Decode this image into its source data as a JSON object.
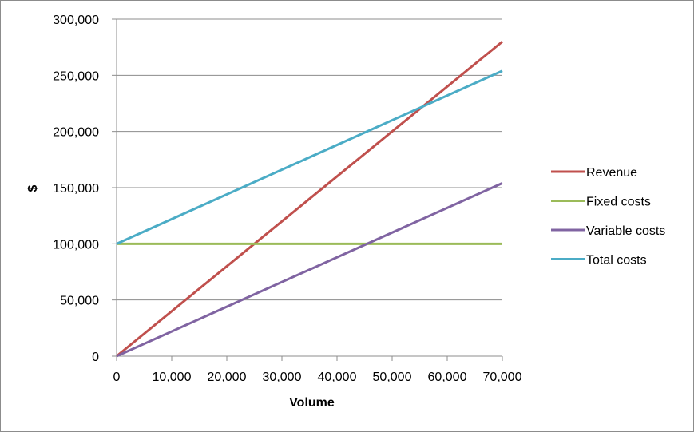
{
  "chart_data": {
    "type": "line",
    "title": "",
    "xlabel": "Volume",
    "ylabel": "$",
    "xlim": [
      0,
      70000
    ],
    "ylim": [
      0,
      300000
    ],
    "x_ticks": [
      0,
      10000,
      20000,
      30000,
      40000,
      50000,
      60000,
      70000
    ],
    "y_ticks": [
      0,
      50000,
      100000,
      150000,
      200000,
      250000,
      300000
    ],
    "x_tick_labels": [
      "0",
      "10,000",
      "20,000",
      "30,000",
      "40,000",
      "50,000",
      "60,000",
      "70,000"
    ],
    "y_tick_labels": [
      "0",
      "50,000",
      "100,000",
      "150,000",
      "200,000",
      "250,000",
      "300,000"
    ],
    "grid": "horizontal",
    "legend_position": "right",
    "series": [
      {
        "name": "Revenue",
        "color": "#c0504d",
        "x": [
          0,
          70000
        ],
        "y": [
          0,
          280000
        ]
      },
      {
        "name": "Fixed costs",
        "color": "#9bbb59",
        "x": [
          0,
          70000
        ],
        "y": [
          100000,
          100000
        ]
      },
      {
        "name": "Variable costs",
        "color": "#8064a2",
        "x": [
          0,
          70000
        ],
        "y": [
          0,
          154000
        ]
      },
      {
        "name": "Total costs",
        "color": "#4bacc6",
        "x": [
          0,
          70000
        ],
        "y": [
          100000,
          254000
        ]
      }
    ]
  }
}
